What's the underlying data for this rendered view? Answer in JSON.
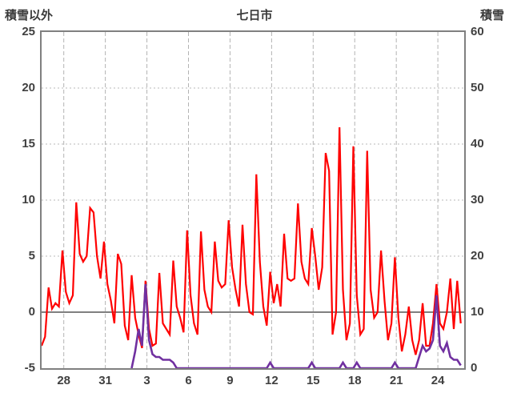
{
  "chart_data": {
    "type": "line",
    "title": "七日市",
    "left_axis": {
      "label": "積雪以外",
      "min": -5,
      "max": 25,
      "ticks": [
        25,
        20,
        15,
        10,
        5,
        0,
        -5
      ]
    },
    "right_axis": {
      "label": "積雪",
      "min": 0,
      "max": 60,
      "ticks": [
        60,
        50,
        40,
        30,
        20,
        10,
        0
      ]
    },
    "x_axis": {
      "min": 0,
      "max": 30.5,
      "tick_positions": [
        1.6,
        4.6,
        7.6,
        10.6,
        13.6,
        16.6,
        19.6,
        22.6,
        25.6,
        28.6
      ],
      "tick_labels": [
        "28",
        "31",
        "3",
        "6",
        "9",
        "12",
        "15",
        "18",
        "21",
        "24"
      ]
    },
    "grid": true,
    "legend": "none",
    "series": [
      {
        "name": "積雪以外",
        "axis": "left",
        "color": "#ff0000",
        "stroke_width": 2.2,
        "x_start": 0,
        "x_step": 0.25,
        "values": [
          -3,
          -2.2,
          2.2,
          0.3,
          0.8,
          0.5,
          5.5,
          1.8,
          0.8,
          1.5,
          9.8,
          5.2,
          4.5,
          5,
          9.3,
          8.9,
          5,
          3,
          6.3,
          2.5,
          1,
          -1,
          5.2,
          4.3,
          -1.2,
          -2.5,
          3.3,
          -0.5,
          -2,
          -3.2,
          2.8,
          -1.5,
          -3,
          -2.8,
          3.5,
          -1,
          -1.5,
          -2,
          4.6,
          0.5,
          -0.5,
          -1.8,
          7.3,
          1.5,
          -1,
          -2,
          7.2,
          2,
          0.5,
          0,
          6.3,
          2.8,
          2.2,
          2.5,
          8.2,
          4,
          2,
          0.5,
          7.8,
          2.5,
          0,
          -0.2,
          12.3,
          4.5,
          0.5,
          -1.2,
          3.6,
          0.8,
          2.5,
          0.5,
          7,
          3,
          2.8,
          3,
          9.7,
          4.5,
          3,
          2.5,
          7.5,
          5,
          2,
          4,
          14.2,
          12.6,
          -2,
          0,
          16.5,
          2,
          -2.5,
          -1,
          14.8,
          1.5,
          -2,
          -1.5,
          14.4,
          2,
          -0.5,
          0,
          5.5,
          1,
          -2.5,
          -1,
          4.9,
          -0.5,
          -3.5,
          -2,
          0.5,
          -2.5,
          -3.8,
          -2.5,
          0.8,
          -3,
          -3,
          -1,
          2.5,
          -1,
          -1.5,
          0,
          3,
          -1.5,
          2.8,
          -1
        ]
      },
      {
        "name": "積雪",
        "axis": "right",
        "color": "#7030a0",
        "stroke_width": 2.6,
        "x_start": 0,
        "x_step": 0.25,
        "values": [
          null,
          null,
          null,
          null,
          null,
          null,
          null,
          null,
          null,
          null,
          null,
          null,
          null,
          null,
          null,
          null,
          null,
          null,
          null,
          null,
          null,
          null,
          null,
          null,
          null,
          null,
          0,
          3,
          7,
          4,
          15,
          5,
          2.5,
          2,
          2,
          1.5,
          1.5,
          1.5,
          1,
          0,
          0,
          0,
          0,
          0,
          0,
          0,
          0,
          0,
          0,
          0,
          0,
          0,
          0,
          0,
          0,
          0,
          0,
          0,
          0,
          0,
          0,
          0,
          0,
          0,
          0,
          0,
          1,
          0,
          0,
          0,
          0,
          0,
          0,
          0,
          0,
          0,
          0,
          0,
          1,
          0,
          0,
          0,
          0,
          0,
          0,
          0,
          0,
          1,
          0,
          0,
          0,
          1,
          0,
          0,
          0,
          0,
          0,
          0,
          0,
          0,
          0,
          0,
          1,
          0,
          0,
          0,
          0,
          0,
          0,
          2,
          4,
          3,
          3.5,
          5,
          13,
          4,
          3,
          4.5,
          2,
          1.5,
          1.5,
          0.5
        ]
      }
    ]
  }
}
